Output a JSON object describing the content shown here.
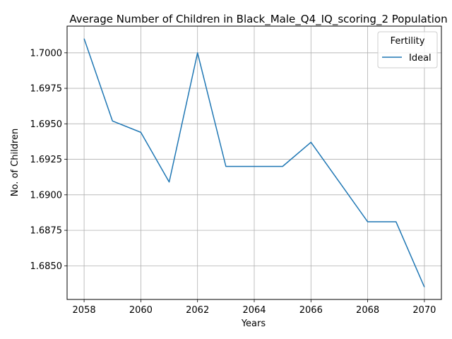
{
  "chart_data": {
    "type": "line",
    "title": "Average Number of Children in Black_Male_Q4_IQ_scoring_2 Population",
    "xlabel": "Years",
    "ylabel": "No. of Children",
    "x": [
      2058,
      2059,
      2060,
      2061,
      2062,
      2063,
      2064,
      2065,
      2066,
      2067,
      2068,
      2069,
      2070
    ],
    "series": [
      {
        "name": "Ideal",
        "color": "#1f77b4",
        "values": [
          1.701,
          1.6952,
          1.6944,
          1.6909,
          1.7,
          1.692,
          1.692,
          1.692,
          1.6937,
          1.6909,
          1.6881,
          1.6881,
          1.6835
        ]
      }
    ],
    "xticks": [
      "2058",
      "2060",
      "2062",
      "2064",
      "2066",
      "2068",
      "2070"
    ],
    "yticks": [
      "1.6850",
      "1.6875",
      "1.6900",
      "1.6925",
      "1.6950",
      "1.6975",
      "1.7000"
    ],
    "xlim": [
      2057.4,
      2070.6
    ],
    "ylim": [
      1.68263,
      1.70188
    ],
    "grid": true,
    "legend": {
      "title": "Fertility",
      "placement": "top-right"
    }
  }
}
